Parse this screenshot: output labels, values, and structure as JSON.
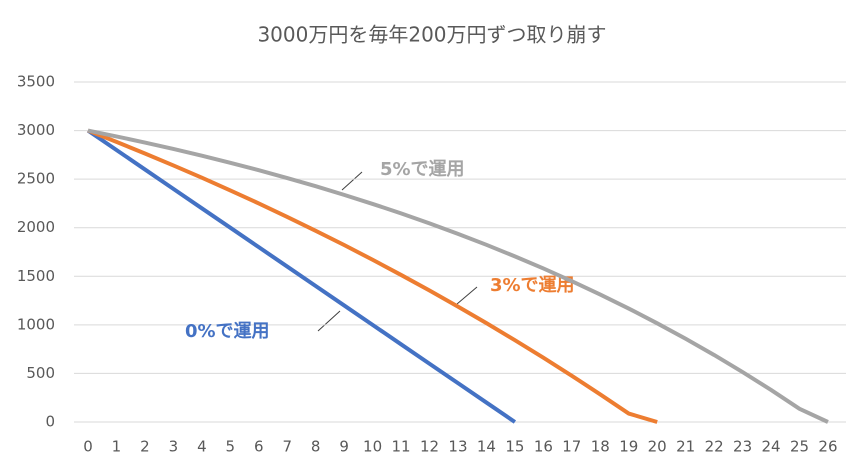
{
  "chart_data": {
    "type": "line",
    "title": "3000万円を毎年200万円ずつ取り崩す",
    "categories": [
      "0",
      "1",
      "2",
      "3",
      "4",
      "5",
      "6",
      "7",
      "8",
      "9",
      "10",
      "11",
      "12",
      "13",
      "14",
      "15",
      "16",
      "17",
      "18",
      "19",
      "20",
      "21",
      "22",
      "23",
      "24",
      "25",
      "26"
    ],
    "series": [
      {
        "name": "0%で運用",
        "color": "#4472c4",
        "values": [
          3000,
          2800,
          2600,
          2400,
          2200,
          2000,
          1800,
          1600,
          1400,
          1200,
          1000,
          800,
          600,
          400,
          200,
          0,
          null,
          null,
          null,
          null,
          null,
          null,
          null,
          null,
          null,
          null,
          null
        ]
      },
      {
        "name": "3%で運用",
        "color": "#ed7d31",
        "values": [
          3000,
          2884,
          2764,
          2641,
          2515,
          2384,
          2250,
          2111,
          1968,
          1822,
          1670,
          1514,
          1354,
          1188,
          1018,
          842,
          662,
          476,
          284,
          87,
          0,
          null,
          null,
          null,
          null,
          null,
          null
        ]
      },
      {
        "name": "5%で運用",
        "color": "#a5a5a5",
        "values": [
          3000,
          2940,
          2877,
          2811,
          2741,
          2668,
          2592,
          2511,
          2427,
          2338,
          2245,
          2148,
          2045,
          1937,
          1824,
          1705,
          1581,
          1450,
          1312,
          1168,
          1016,
          857,
          690,
          514,
          330,
          136,
          0
        ]
      }
    ],
    "ylim": [
      0,
      3500
    ],
    "yticks": [
      0,
      500,
      1000,
      1500,
      2000,
      2500,
      3000,
      3500
    ],
    "grid": true
  }
}
